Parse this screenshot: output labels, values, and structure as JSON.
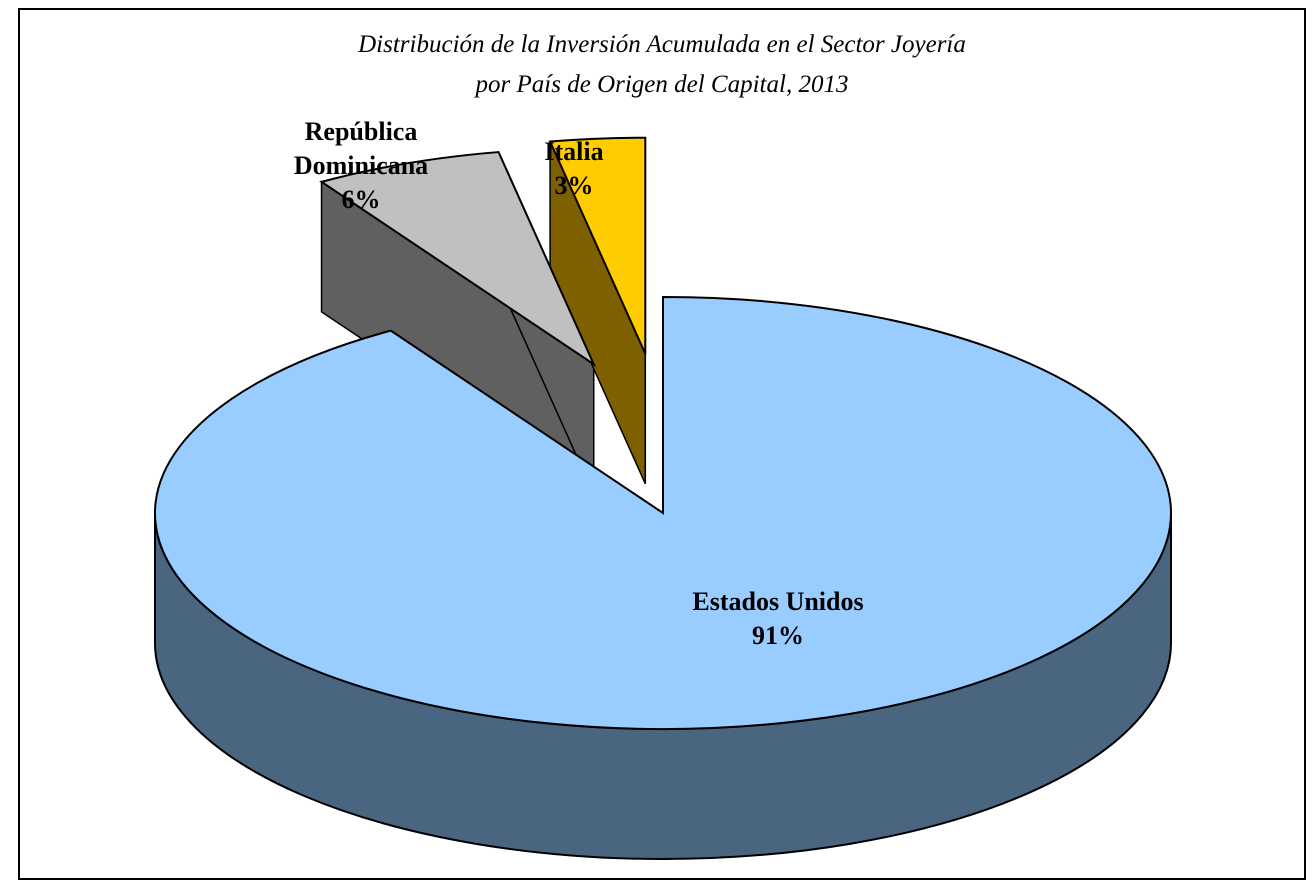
{
  "chart_data": {
    "type": "pie",
    "title": [
      "Distribución de la Inversión Acumulada en el Sector Joyería",
      "por País de Origen del Capital, 2013"
    ],
    "slices": [
      {
        "label_lines": [
          "Estados Unidos"
        ],
        "value": 91,
        "percent_label": "91%",
        "top_color": "#99ccff",
        "side_color": "#4a6580",
        "exploded": false
      },
      {
        "label_lines": [
          "República",
          "Dominicana"
        ],
        "value": 6,
        "percent_label": "6%",
        "top_color": "#c0c0c0",
        "side_color": "#606060",
        "exploded": true
      },
      {
        "label_lines": [
          "Italia"
        ],
        "value": 3,
        "percent_label": "3%",
        "top_color": "#ffcc00",
        "side_color": "#7f6000",
        "exploded": true
      }
    ],
    "style": "3d-exploded-pie",
    "legend": "none",
    "outline_color": "#000000"
  }
}
